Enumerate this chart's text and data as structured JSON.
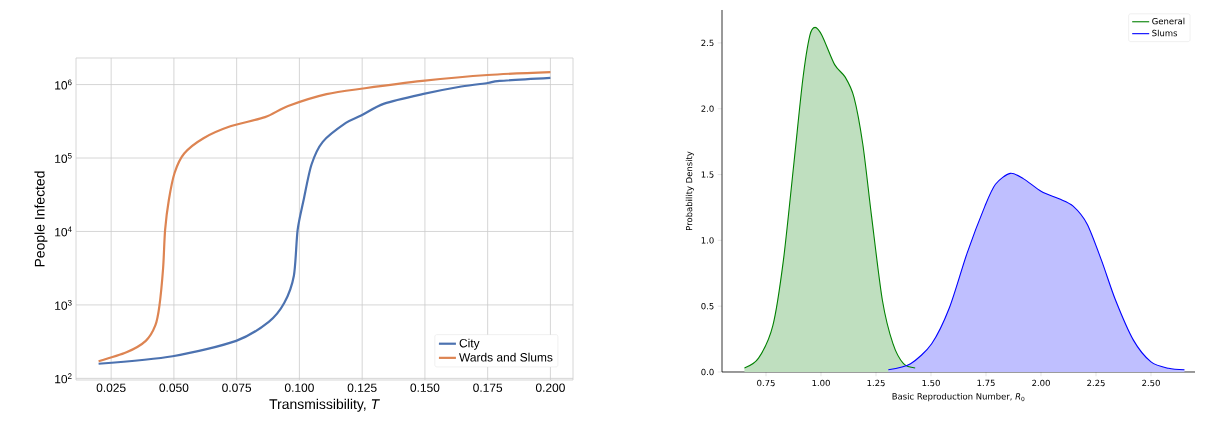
{
  "chart_data": [
    {
      "type": "line",
      "xlabel": "Transmissibility, *T*",
      "ylabel": "People Infected",
      "log": "y",
      "grid": true,
      "legend": "bottom right",
      "xlim": [
        0.011,
        0.209
      ],
      "xticks": [
        {
          "value": 0.025,
          "label": "0.025"
        },
        {
          "value": 0.05,
          "label": "0.050"
        },
        {
          "value": 0.075,
          "label": "0.075"
        },
        {
          "value": 0.1,
          "label": "0.100"
        },
        {
          "value": 0.125,
          "label": "0.125"
        },
        {
          "value": 0.15,
          "label": "0.150"
        },
        {
          "value": 0.175,
          "label": "0.175"
        },
        {
          "value": 0.2,
          "label": "0.200"
        }
      ],
      "ylim": [
        95,
        2300000
      ],
      "yticks": [
        {
          "value": 100,
          "label": "10$^{2}$"
        },
        {
          "value": 1000,
          "label": "10$^{3}$"
        },
        {
          "value": 10000,
          "label": "10$^{4}$"
        },
        {
          "value": 100000,
          "label": "10$^{5}$"
        },
        {
          "value": 1000000,
          "label": "10$^{6}$"
        }
      ],
      "series": [
        {
          "name": "City",
          "color": "#4c72b0",
          "x": [
            0.02,
            0.0495,
            0.0748,
            0.0878,
            0.094,
            0.0978,
            0.0993,
            0.1017,
            0.1048,
            0.1093,
            0.1185,
            0.1246,
            0.1338,
            0.149,
            0.1645,
            0.175,
            0.1798,
            0.2
          ],
          "values": [
            158,
            200,
            324,
            589,
            1070,
            2500,
            10500,
            27000,
            81000,
            166000,
            300000,
            380000,
            550000,
            740000,
            940000,
            1050000,
            1120000,
            1230000
          ]
        },
        {
          "name": "Wards and Slums",
          "color": "#dd8452",
          "x": [
            0.02,
            0.0311,
            0.0388,
            0.0426,
            0.0442,
            0.0457,
            0.0465,
            0.048,
            0.0503,
            0.0541,
            0.0618,
            0.0725,
            0.0863,
            0.0955,
            0.1108,
            0.1261,
            0.149,
            0.175,
            0.2
          ],
          "values": [
            171,
            226,
            324,
            525,
            955,
            3160,
            10500,
            27000,
            63000,
            115000,
            186000,
            270000,
            360000,
            510000,
            740000,
            890000,
            1120000,
            1350000,
            1480000
          ]
        }
      ]
    },
    {
      "type": "area",
      "xlabel": "Basic Reproduction Number, *R*$_{0}$",
      "ylabel": "Probability Density",
      "legend": "top right",
      "xlim": [
        0.55,
        2.7
      ],
      "xticks": [
        {
          "value": 0.75,
          "label": "0.75"
        },
        {
          "value": 1.0,
          "label": "1.00"
        },
        {
          "value": 1.25,
          "label": "1.25"
        },
        {
          "value": 1.5,
          "label": "1.50"
        },
        {
          "value": 1.75,
          "label": "1.75"
        },
        {
          "value": 2.0,
          "label": "2.00"
        },
        {
          "value": 2.25,
          "label": "2.25"
        },
        {
          "value": 2.5,
          "label": "2.50"
        }
      ],
      "ylim": [
        0,
        2.75
      ],
      "yticks": [
        {
          "value": 0,
          "label": "0.0"
        },
        {
          "value": 0.5,
          "label": "0.5"
        },
        {
          "value": 1.0,
          "label": "1.0"
        },
        {
          "value": 1.5,
          "label": "1.5"
        },
        {
          "value": 2.0,
          "label": "2.0"
        },
        {
          "value": 2.5,
          "label": "2.5"
        }
      ],
      "series": [
        {
          "name": "General",
          "color": "#008000",
          "x": [
            0.652,
            0.716,
            0.781,
            0.829,
            0.877,
            0.917,
            0.949,
            0.973,
            1.005,
            1.062,
            1.11,
            1.15,
            1.19,
            1.23,
            1.279,
            1.327,
            1.375,
            1.428
          ],
          "values": [
            0.03,
            0.105,
            0.352,
            0.848,
            1.59,
            2.22,
            2.555,
            2.618,
            2.555,
            2.335,
            2.24,
            2.087,
            1.73,
            1.18,
            0.545,
            0.215,
            0.063,
            0.03
          ]
        },
        {
          "name": "Slums",
          "color": "#0000ff",
          "x": [
            1.306,
            1.407,
            1.503,
            1.584,
            1.664,
            1.745,
            1.793,
            1.86,
            1.921,
            2.002,
            2.082,
            2.146,
            2.21,
            2.275,
            2.339,
            2.42,
            2.5,
            2.58,
            2.652
          ],
          "values": [
            0.017,
            0.063,
            0.215,
            0.49,
            0.903,
            1.26,
            1.426,
            1.509,
            1.467,
            1.371,
            1.316,
            1.26,
            1.123,
            0.848,
            0.545,
            0.242,
            0.077,
            0.028,
            0.017
          ]
        }
      ]
    }
  ]
}
